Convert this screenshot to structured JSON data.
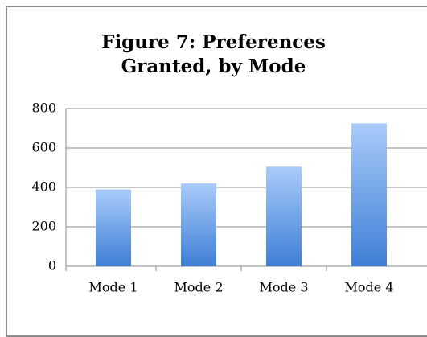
{
  "chart_data": {
    "type": "bar",
    "title": "Figure 7: Preferences Granted, by Mode",
    "categories": [
      "Mode 1",
      "Mode 2",
      "Mode 3",
      "Mode 4"
    ],
    "values": [
      390,
      420,
      505,
      725
    ],
    "color": "#3f7fd6",
    "ylim": [
      0,
      800
    ],
    "yticks": [
      0,
      200,
      400,
      600,
      800
    ],
    "grid": true
  }
}
